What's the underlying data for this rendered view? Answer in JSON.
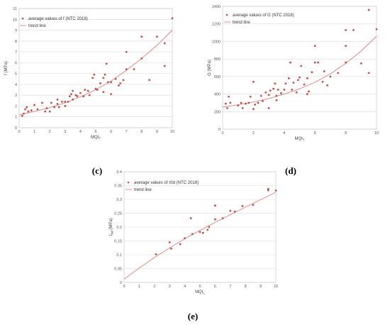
{
  "colors": {
    "point": "#c0504d",
    "trend": "#d8807e",
    "grid": "#d9d9d9"
  },
  "chart_data": [
    {
      "type": "scatter",
      "caption": "(c)",
      "xlabel": "MQI",
      "xlabel_sub": "T",
      "ylabel": "f  (MPa)",
      "xlim": [
        0,
        10
      ],
      "ylim": [
        0,
        11
      ],
      "xticks": [
        0,
        1,
        2,
        3,
        4,
        5,
        6,
        7,
        8,
        9,
        10
      ],
      "yticks": [
        0,
        1,
        2,
        3,
        4,
        5,
        6,
        7,
        8,
        9,
        10,
        11
      ],
      "legend": [
        "average values of f (NTC 2018)",
        "trend line"
      ],
      "legend_position": "top-left",
      "grid": true,
      "trend_line": [
        [
          0,
          1.2
        ],
        [
          1,
          1.5
        ],
        [
          2,
          1.85
        ],
        [
          3,
          2.3
        ],
        [
          4,
          2.85
        ],
        [
          5,
          3.5
        ],
        [
          6,
          4.3
        ],
        [
          7,
          5.3
        ],
        [
          8,
          6.4
        ],
        [
          9,
          7.6
        ],
        [
          10,
          9.0
        ]
      ],
      "points": [
        [
          0.2,
          1.1
        ],
        [
          0.3,
          1.3
        ],
        [
          0.4,
          1.7
        ],
        [
          0.5,
          1.9
        ],
        [
          0.6,
          1.5
        ],
        [
          0.8,
          1.6
        ],
        [
          1.0,
          2.1
        ],
        [
          1.2,
          1.7
        ],
        [
          1.5,
          2.3
        ],
        [
          1.7,
          1.5
        ],
        [
          1.8,
          1.8
        ],
        [
          2.0,
          1.5
        ],
        [
          2.1,
          2.3
        ],
        [
          2.3,
          1.9
        ],
        [
          2.5,
          2.2
        ],
        [
          2.5,
          2.6
        ],
        [
          2.6,
          1.9
        ],
        [
          2.8,
          2.4
        ],
        [
          3.0,
          2.0
        ],
        [
          3.0,
          2.4
        ],
        [
          3.2,
          2.4
        ],
        [
          3.3,
          2.9
        ],
        [
          3.4,
          3.1
        ],
        [
          3.5,
          3.4
        ],
        [
          3.5,
          2.6
        ],
        [
          3.7,
          3.0
        ],
        [
          3.8,
          2.9
        ],
        [
          4.0,
          3.2
        ],
        [
          4.2,
          2.9
        ],
        [
          4.3,
          3.5
        ],
        [
          4.5,
          3.4
        ],
        [
          4.6,
          3.0
        ],
        [
          4.8,
          4.6
        ],
        [
          4.9,
          4.9
        ],
        [
          5.0,
          3.6
        ],
        [
          5.1,
          3.5
        ],
        [
          5.3,
          4.1
        ],
        [
          5.5,
          3.3
        ],
        [
          5.5,
          4.6
        ],
        [
          5.6,
          4.9
        ],
        [
          5.7,
          5.9
        ],
        [
          5.8,
          4.2
        ],
        [
          6.0,
          3.1
        ],
        [
          6.0,
          4.2
        ],
        [
          6.3,
          4.5
        ],
        [
          6.5,
          3.9
        ],
        [
          6.6,
          4.1
        ],
        [
          6.8,
          4.4
        ],
        [
          7.0,
          5.4
        ],
        [
          7.0,
          7.0
        ],
        [
          7.5,
          5.4
        ],
        [
          8.0,
          6.4
        ],
        [
          8.0,
          8.4
        ],
        [
          8.5,
          4.4
        ],
        [
          9.0,
          8.4
        ],
        [
          9.5,
          5.7
        ],
        [
          9.5,
          7.8
        ],
        [
          10.0,
          10.1
        ]
      ]
    },
    {
      "type": "scatter",
      "caption": "(d)",
      "xlabel": "MQI",
      "xlabel_sub": "T",
      "ylabel": "G  (MPa)",
      "xlim": [
        0,
        10
      ],
      "ylim": [
        0,
        1400
      ],
      "xticks": [
        0,
        2,
        4,
        6,
        8,
        10
      ],
      "yticks": [
        0,
        200,
        400,
        600,
        800,
        1000,
        1200,
        1400
      ],
      "legend": [
        "average values of G (NTC 2018)",
        "trend line"
      ],
      "legend_position": "top-left",
      "grid": true,
      "trend_line": [
        [
          0,
          250
        ],
        [
          1,
          278
        ],
        [
          2,
          310
        ],
        [
          3,
          350
        ],
        [
          4,
          400
        ],
        [
          5,
          460
        ],
        [
          6,
          535
        ],
        [
          7,
          630
        ],
        [
          8,
          750
        ],
        [
          9,
          890
        ],
        [
          10,
          1060
        ]
      ],
      "points": [
        [
          0.2,
          290
        ],
        [
          0.3,
          240
        ],
        [
          0.4,
          370
        ],
        [
          0.5,
          300
        ],
        [
          1.0,
          270
        ],
        [
          1.2,
          300
        ],
        [
          1.3,
          240
        ],
        [
          1.5,
          290
        ],
        [
          1.7,
          300
        ],
        [
          1.8,
          370
        ],
        [
          2.0,
          230
        ],
        [
          2.0,
          540
        ],
        [
          2.1,
          280
        ],
        [
          2.3,
          300
        ],
        [
          2.5,
          380
        ],
        [
          2.6,
          320
        ],
        [
          2.8,
          420
        ],
        [
          3.0,
          240
        ],
        [
          3.0,
          390
        ],
        [
          3.1,
          440
        ],
        [
          3.3,
          460
        ],
        [
          3.4,
          520
        ],
        [
          3.5,
          330
        ],
        [
          3.5,
          380
        ],
        [
          3.6,
          450
        ],
        [
          3.8,
          410
        ],
        [
          4.0,
          450
        ],
        [
          4.1,
          520
        ],
        [
          4.3,
          580
        ],
        [
          4.4,
          760
        ],
        [
          4.5,
          450
        ],
        [
          4.6,
          530
        ],
        [
          4.8,
          420
        ],
        [
          4.9,
          560
        ],
        [
          5.0,
          590
        ],
        [
          5.1,
          720
        ],
        [
          5.3,
          510
        ],
        [
          5.5,
          400
        ],
        [
          5.5,
          580
        ],
        [
          5.6,
          430
        ],
        [
          5.8,
          650
        ],
        [
          6.0,
          760
        ],
        [
          6.0,
          950
        ],
        [
          6.2,
          760
        ],
        [
          6.5,
          540
        ],
        [
          6.6,
          660
        ],
        [
          6.8,
          500
        ],
        [
          7.0,
          600
        ],
        [
          7.5,
          640
        ],
        [
          8.0,
          760
        ],
        [
          8.0,
          950
        ],
        [
          8.0,
          1130
        ],
        [
          8.5,
          1130
        ],
        [
          9.0,
          750
        ],
        [
          9.5,
          1360
        ],
        [
          9.5,
          640
        ],
        [
          10.0,
          1140
        ]
      ]
    },
    {
      "type": "scatter",
      "caption": "(e)",
      "xlabel": "MQI",
      "xlabel_sub": "L",
      "ylabel": "τ",
      "ylabel_sub": "0d",
      "ylabel_unit": " (MPa)",
      "xlim": [
        0,
        10
      ],
      "ylim": [
        0,
        0.4
      ],
      "xticks": [
        0,
        1,
        2,
        3,
        4,
        5,
        6,
        7,
        8,
        9,
        10
      ],
      "yticks": [
        "0",
        "0.05",
        "0.1",
        "0.15",
        "0.2",
        "0.25",
        "0.3",
        "0.35",
        "0.4"
      ],
      "yticks_values": [
        0,
        0.05,
        0.1,
        0.15,
        0.2,
        0.25,
        0.3,
        0.35,
        0.4
      ],
      "legend": [
        "average values of τ0d (NTC 2018)",
        "trend line"
      ],
      "legend_position": "top-left",
      "grid": true,
      "trend_line": [
        [
          0,
          0.012
        ],
        [
          1,
          0.052
        ],
        [
          2,
          0.09
        ],
        [
          3,
          0.125
        ],
        [
          4,
          0.158
        ],
        [
          5,
          0.188
        ],
        [
          6,
          0.217
        ],
        [
          7,
          0.245
        ],
        [
          8,
          0.272
        ],
        [
          9,
          0.299
        ],
        [
          10,
          0.326
        ]
      ],
      "points": [
        [
          2.1,
          0.102
        ],
        [
          3.0,
          0.145
        ],
        [
          3.1,
          0.122
        ],
        [
          3.7,
          0.138
        ],
        [
          4.0,
          0.16
        ],
        [
          4.4,
          0.232
        ],
        [
          4.5,
          0.175
        ],
        [
          5.0,
          0.182
        ],
        [
          5.2,
          0.179
        ],
        [
          5.5,
          0.19
        ],
        [
          5.6,
          0.2
        ],
        [
          6.0,
          0.278
        ],
        [
          6.0,
          0.228
        ],
        [
          6.5,
          0.232
        ],
        [
          7.0,
          0.259
        ],
        [
          7.3,
          0.256
        ],
        [
          7.8,
          0.276
        ],
        [
          8.5,
          0.28
        ],
        [
          9.5,
          0.333
        ],
        [
          9.5,
          0.338
        ],
        [
          10.0,
          0.332
        ]
      ]
    }
  ]
}
